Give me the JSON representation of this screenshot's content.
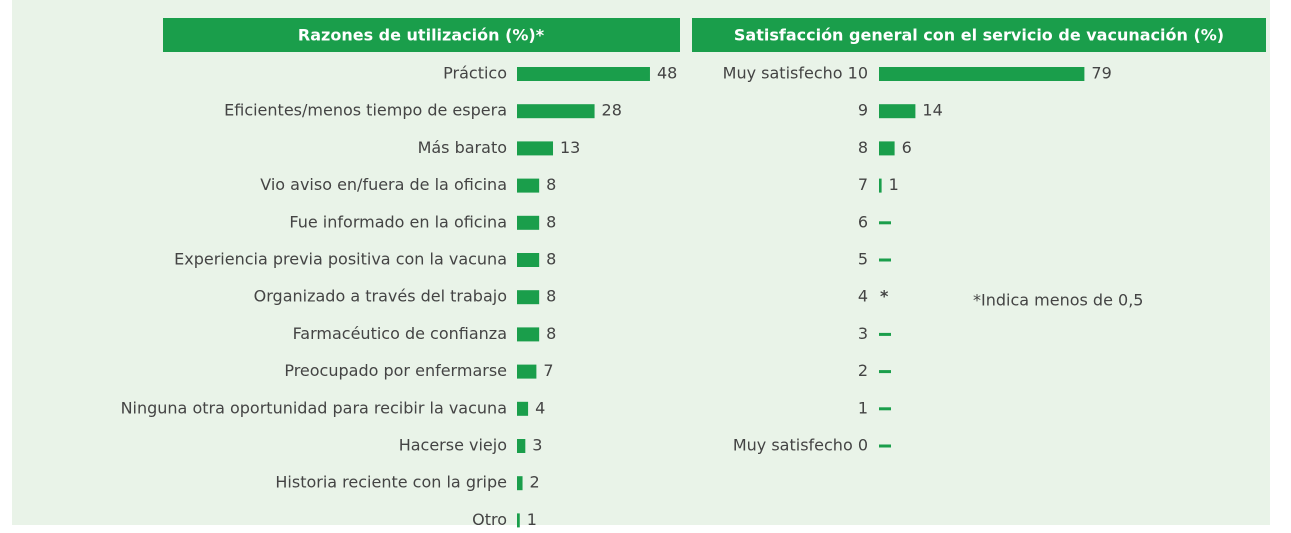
{
  "chart_data": [
    {
      "type": "bar",
      "orientation": "horizontal",
      "title": "Razones de utilización (%)*",
      "color": "#1a9e4b",
      "categories": [
        "Práctico",
        "Eficientes/menos tiempo de espera",
        "Más barato",
        "Vio aviso en/fuera de la oficina",
        "Fue informado en la oficina",
        "Experiencia previa positiva con la vacuna",
        "Organizado a través del trabajo",
        "Farmacéutico de confianza",
        "Preocupado por enfermarse",
        "Ninguna otra oportunidad para recibir la vacuna",
        "Hacerse viejo",
        "Historia reciente con la gripe",
        "Otro"
      ],
      "values": [
        48,
        28,
        13,
        8,
        8,
        8,
        8,
        8,
        7,
        4,
        3,
        2,
        1
      ]
    },
    {
      "type": "bar",
      "orientation": "horizontal",
      "title": "Satisfacción general con el servicio de vacunación (%)",
      "color": "#1a9e4b",
      "categories": [
        "Muy satisfecho 10",
        "9",
        "8",
        "7",
        "6",
        "5",
        "4",
        "3",
        "2",
        "1",
        "Muy satisfecho 0"
      ],
      "values": [
        79,
        14,
        6,
        1,
        0,
        0,
        null,
        0,
        0,
        0,
        0
      ],
      "value_labels": [
        "79",
        "14",
        "6",
        "1",
        null,
        null,
        "*",
        null,
        null,
        null,
        null
      ],
      "annotation": "*Indica menos de 0,5"
    }
  ]
}
